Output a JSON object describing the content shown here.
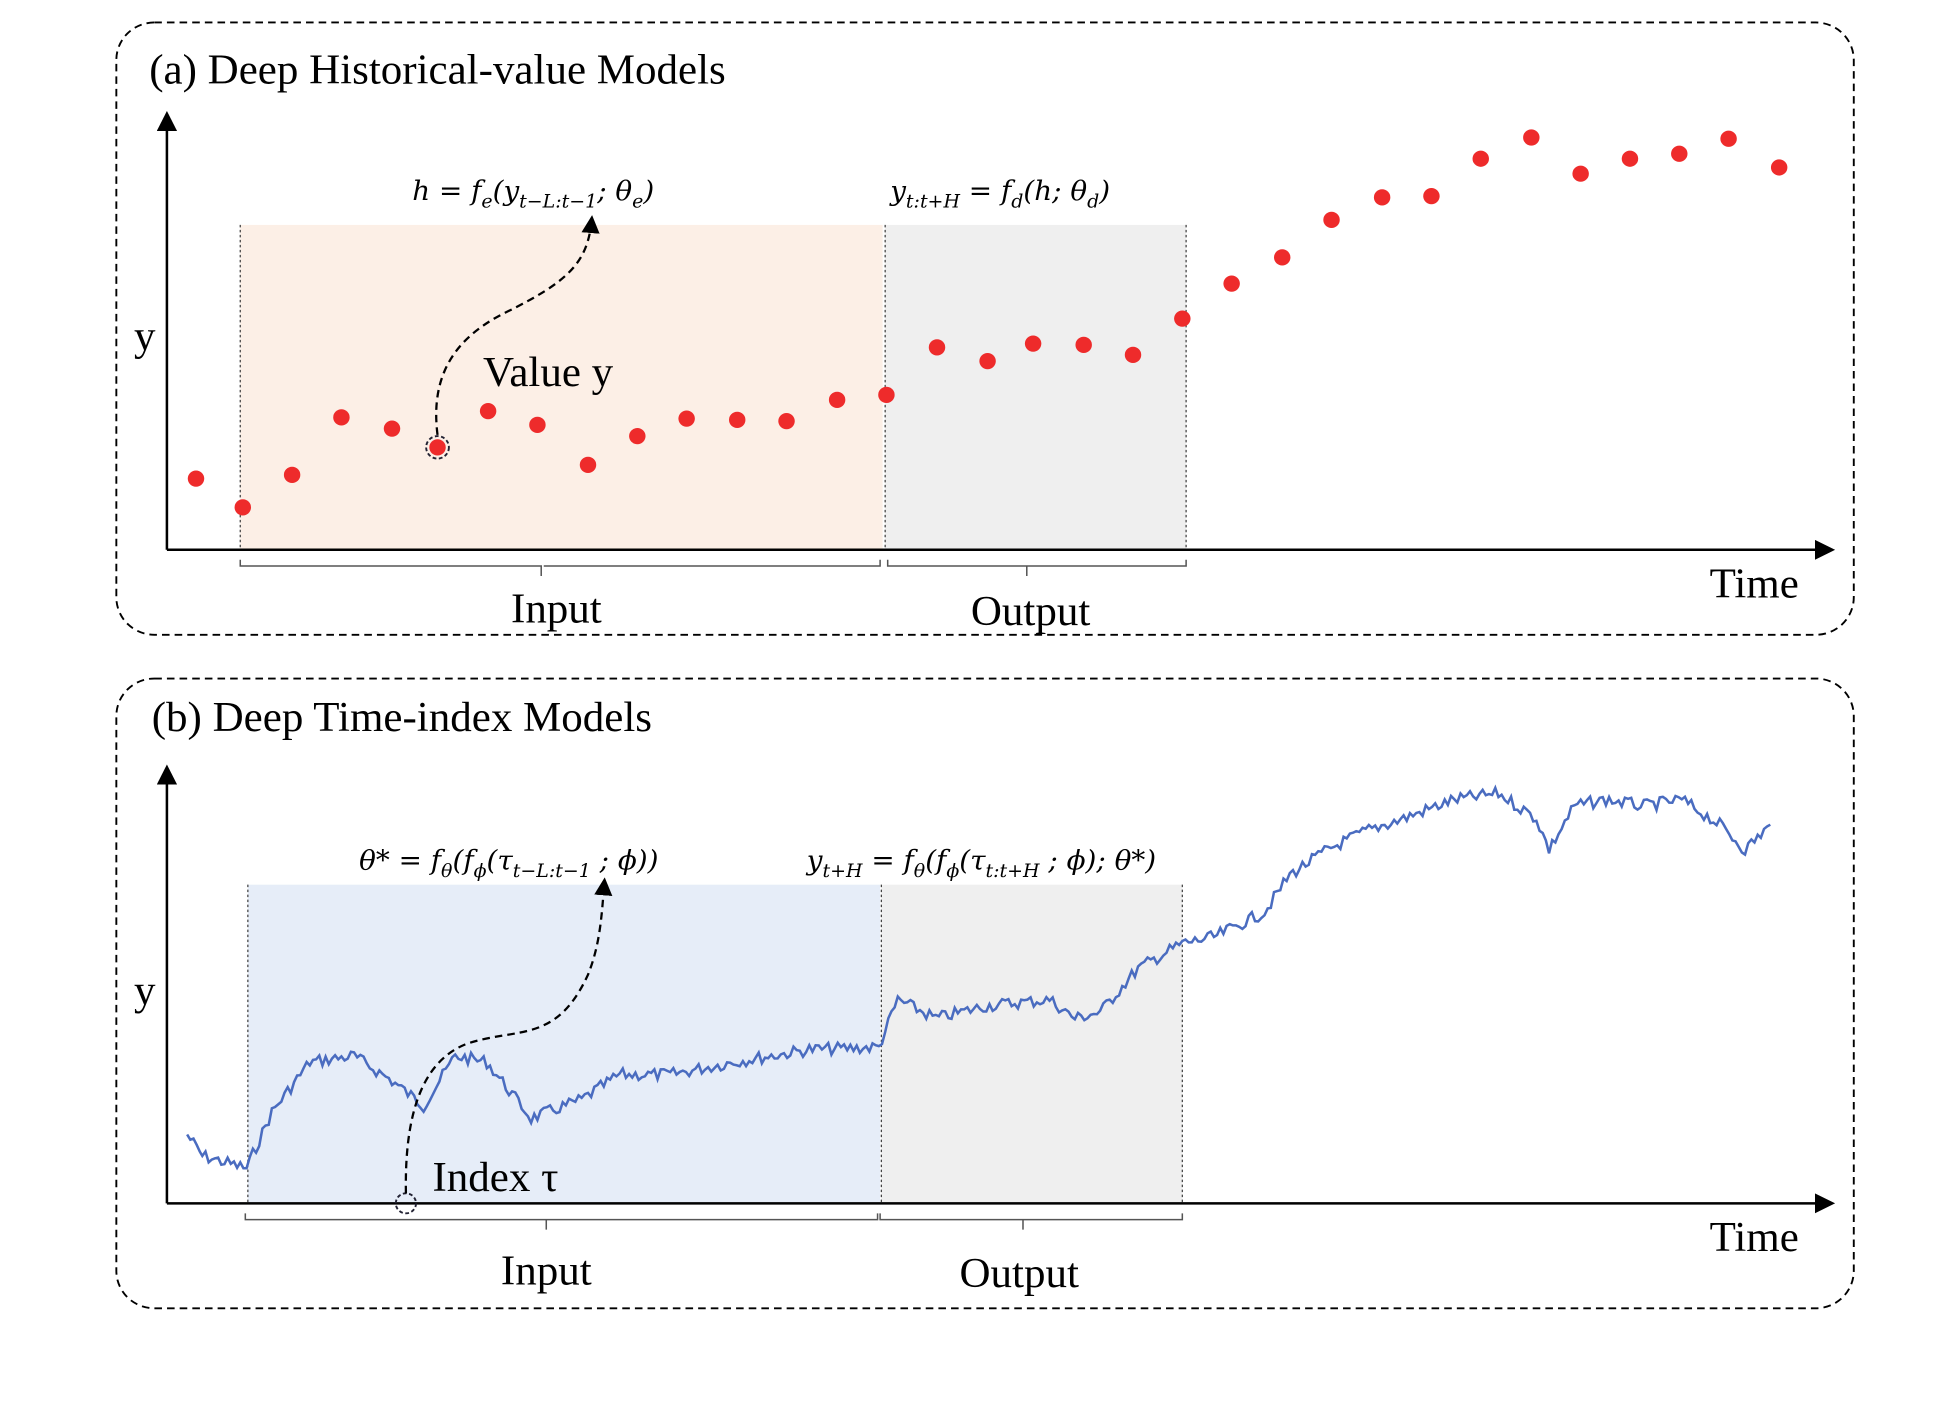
{
  "panel_a": {
    "title": "(a) Deep Historical-value Models",
    "y_label": "y",
    "x_label": "Time",
    "formula_left": [
      "h = f",
      "e",
      "(y",
      "t−L:t−1",
      "; θ",
      "e",
      ")"
    ],
    "formula_right": [
      "y",
      "t:t+H",
      " = f",
      "d",
      "(h; θ",
      "d",
      ")"
    ],
    "annotation": "Value y",
    "input_label": "Input",
    "output_label": "Output"
  },
  "panel_b": {
    "title": "(b) Deep Time-index Models",
    "y_label": "y",
    "x_label": "Time",
    "formula_left": [
      "θ* = f",
      "θ",
      "(f",
      "ϕ",
      "(τ",
      "t−L:t−1",
      " ; ϕ))"
    ],
    "formula_right": [
      "y",
      "t+H",
      " = f",
      "θ",
      "(f",
      "ϕ",
      "(τ",
      "t:t+H",
      " ; ϕ); θ*)"
    ],
    "annotation": "Index τ",
    "input_label": "Input",
    "output_label": "Output"
  }
}
